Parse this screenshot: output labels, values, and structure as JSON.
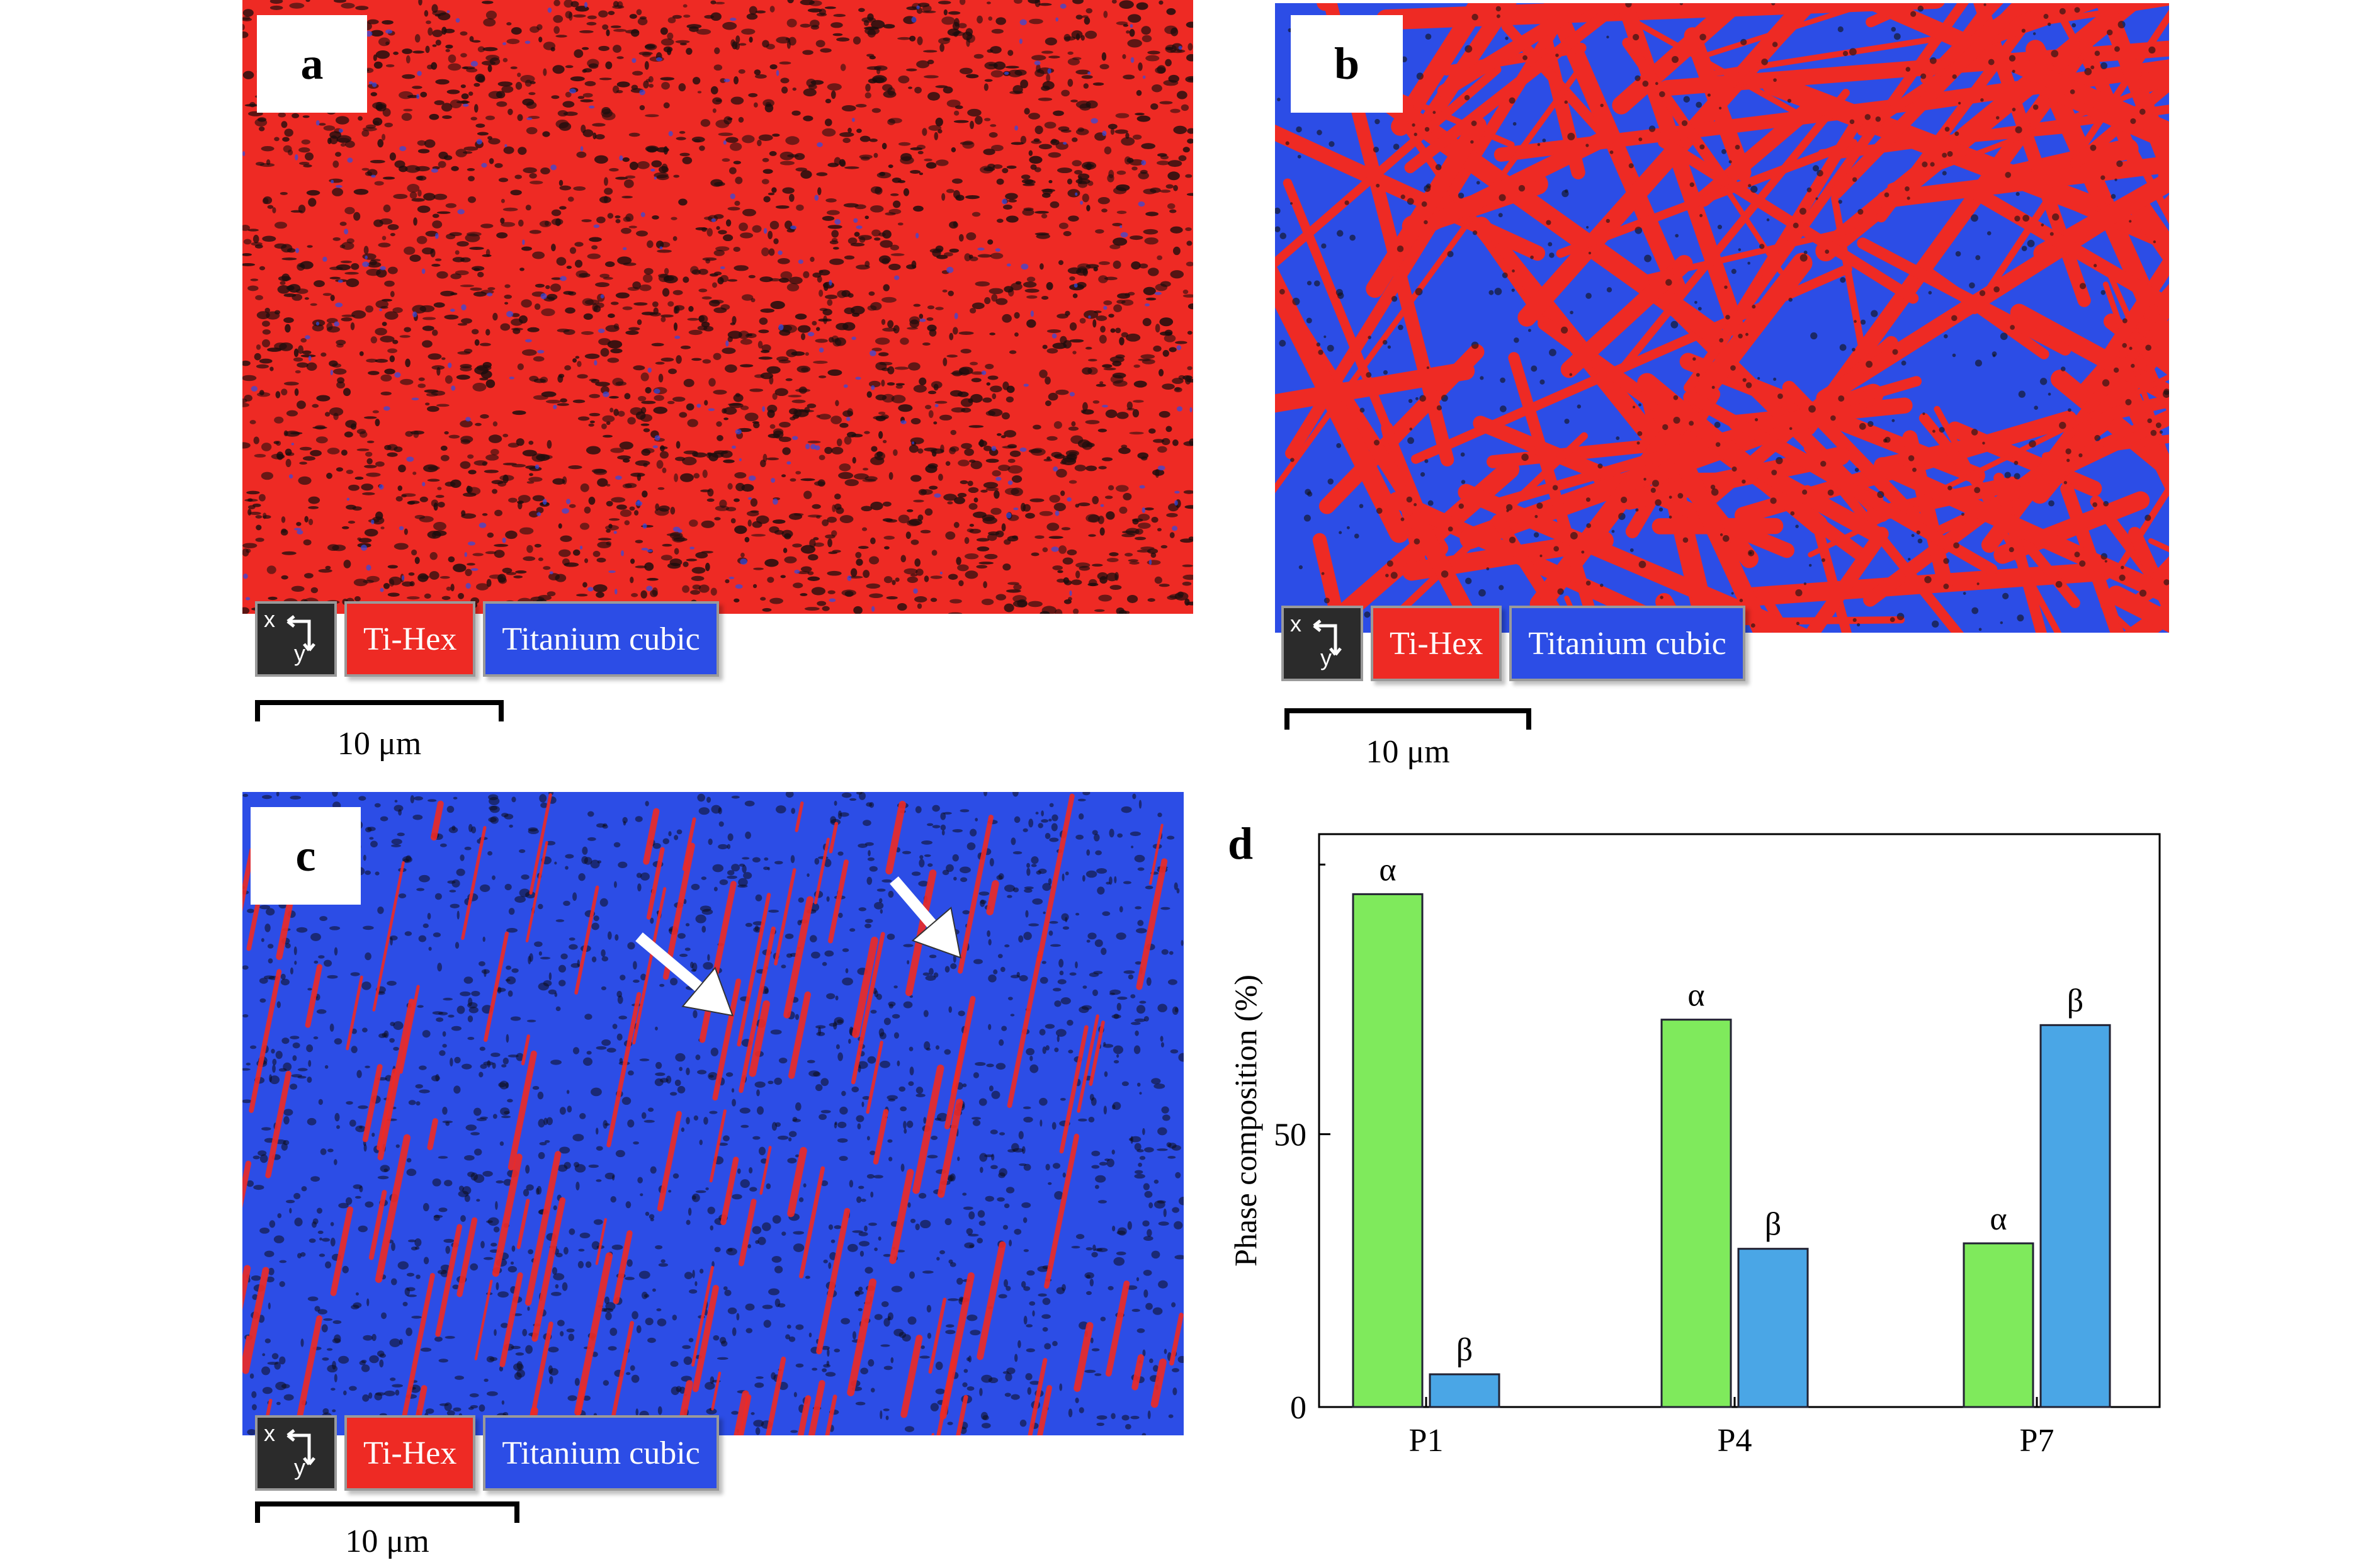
{
  "panels": [
    {
      "label": "a",
      "legend": {
        "axis_x": "x",
        "axis_y": "y",
        "phase1": "Ti-Hex",
        "phase2": "Titanium cubic"
      },
      "scale": "10 μm"
    },
    {
      "label": "b",
      "legend": {
        "axis_x": "x",
        "axis_y": "y",
        "phase1": "Ti-Hex",
        "phase2": "Titanium cubic"
      },
      "scale": "10 μm"
    },
    {
      "label": "c",
      "legend": {
        "axis_x": "x",
        "axis_y": "y",
        "phase1": "Ti-Hex",
        "phase2": "Titanium cubic"
      },
      "scale": "10 μm"
    },
    {
      "label": "d"
    }
  ],
  "colors": {
    "ti_hex": "#ee2a24",
    "titanium_cubic": "#2c4de6",
    "alpha_bar": "#7fea5c",
    "beta_bar": "#4aa6e6"
  },
  "chart_data": {
    "type": "bar",
    "categories": [
      "P1",
      "P4",
      "P7"
    ],
    "series": [
      {
        "values": [
          94,
          71,
          30
        ],
        "labels": [
          "α",
          "α",
          "α"
        ]
      },
      {
        "values": [
          6,
          29,
          70
        ],
        "labels": [
          "β",
          "β",
          "β"
        ]
      }
    ],
    "ylabel": "Phase composition (%)",
    "xlabel": "",
    "yticks": [
      0,
      50
    ],
    "ylim": [
      0,
      105
    ]
  }
}
